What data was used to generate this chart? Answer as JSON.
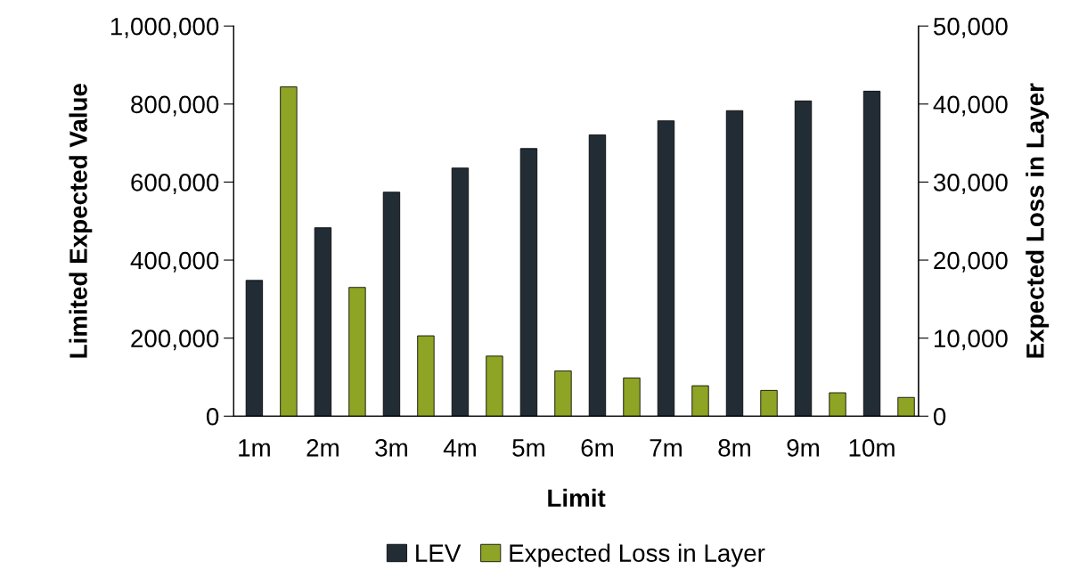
{
  "chart_data": {
    "type": "bar",
    "xlabel": "Limit",
    "ylabel": "Limited Expected Value",
    "y2label": "Expected Loss in Layer",
    "categories": [
      "1m",
      "2m",
      "3m",
      "4m",
      "5m",
      "6m",
      "7m",
      "8m",
      "9m",
      "10m"
    ],
    "series": [
      {
        "name": "LEV",
        "color": "#222c35",
        "values": [
          348000,
          483000,
          574000,
          636000,
          686000,
          721000,
          757000,
          783000,
          808000,
          833000
        ]
      },
      {
        "name": "Expected Loss in Layer",
        "color": "#8ea424",
        "axis": "y2",
        "values": [
          42200,
          16500,
          10300,
          7700,
          5800,
          4900,
          3900,
          3300,
          3000,
          2400
        ]
      }
    ],
    "ylim": [
      0,
      1000000
    ],
    "yticks": [
      {
        "value": 0,
        "label": "0"
      },
      {
        "value": 200000,
        "label": "200,000"
      },
      {
        "value": 400000,
        "label": "400,000"
      },
      {
        "value": 600000,
        "label": "600,000"
      },
      {
        "value": 800000,
        "label": "800,000"
      },
      {
        "value": 1000000,
        "label": "1,000,000"
      }
    ],
    "y2lim": [
      0,
      50000
    ],
    "y2ticks": [
      {
        "value": 0,
        "label": "0"
      },
      {
        "value": 10000,
        "label": "10,000"
      },
      {
        "value": 20000,
        "label": "20,000"
      },
      {
        "value": 30000,
        "label": "30,000"
      },
      {
        "value": 40000,
        "label": "40,000"
      },
      {
        "value": 50000,
        "label": "50,000"
      }
    ],
    "grid": false,
    "legend": "bottom"
  }
}
